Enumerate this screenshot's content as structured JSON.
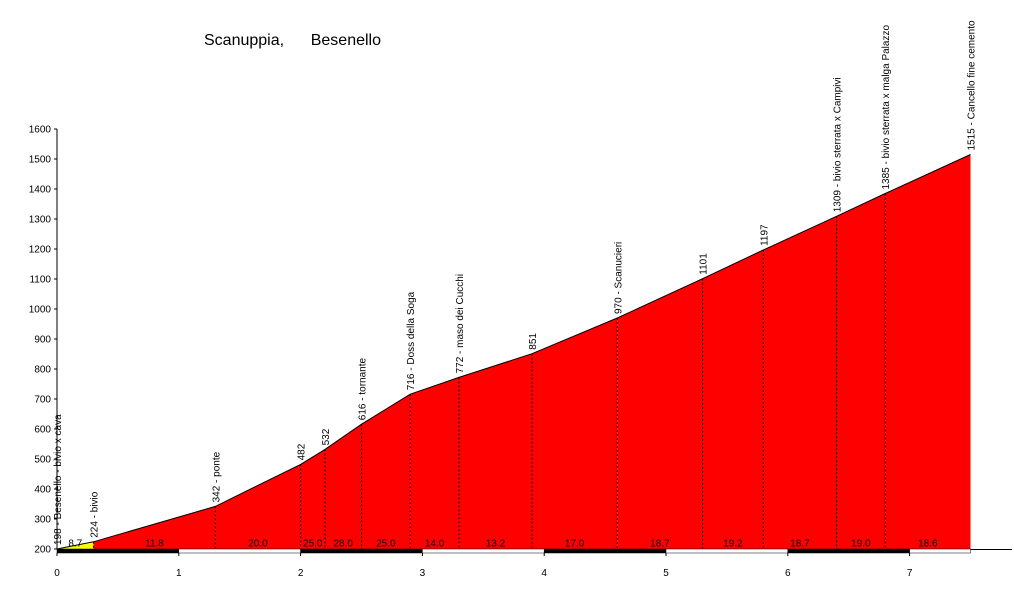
{
  "chart_data": {
    "type": "area",
    "title": "Scanuppia,      Besenello",
    "xlabel": "",
    "ylabel": "",
    "xlim": [
      0,
      7.5
    ],
    "ylim": [
      200,
      1600
    ],
    "xticks": [
      "0",
      "1",
      "2",
      "3",
      "4",
      "5",
      "6",
      "7"
    ],
    "yticks": [
      "200",
      "300",
      "400",
      "500",
      "600",
      "700",
      "800",
      "900",
      "1000",
      "1100",
      "1200",
      "1300",
      "1400",
      "1500",
      "1600"
    ],
    "profile": [
      {
        "x": 0.0,
        "y": 198,
        "label": "198 - Besenello - bivio x cava"
      },
      {
        "x": 0.3,
        "y": 224,
        "label": "224 - bivio"
      },
      {
        "x": 1.3,
        "y": 342,
        "label": "342 - ponte"
      },
      {
        "x": 2.0,
        "y": 482,
        "label": "482"
      },
      {
        "x": 2.2,
        "y": 532,
        "label": "532"
      },
      {
        "x": 2.5,
        "y": 616,
        "label": "616 - tornante"
      },
      {
        "x": 2.9,
        "y": 716,
        "label": "716 - Doss della Soga"
      },
      {
        "x": 3.3,
        "y": 772,
        "label": "772 - maso dei Cucchi"
      },
      {
        "x": 3.9,
        "y": 851,
        "label": "851"
      },
      {
        "x": 4.6,
        "y": 970,
        "label": "970 - Scanucieri"
      },
      {
        "x": 5.3,
        "y": 1101,
        "label": "1101"
      },
      {
        "x": 5.8,
        "y": 1197,
        "label": "1197"
      },
      {
        "x": 6.4,
        "y": 1309,
        "label": "1309 - bivio sterrata x Campivi"
      },
      {
        "x": 6.8,
        "y": 1385,
        "label": "1385 - bivio sterrata x malga Palazzo"
      },
      {
        "x": 7.5,
        "y": 1515,
        "label": "1515 - Cancello fine cemento"
      }
    ],
    "gradients": [
      "8.7",
      "11.8",
      "20.0",
      "25.0",
      "28.0",
      "25.0",
      "14.0",
      "13.2",
      "17.0",
      "18.7",
      "19.2",
      "18.7",
      "19.0",
      "18.6"
    ],
    "colors": {
      "fill": "#ff0000",
      "first_segment": "#ffff00",
      "line": "#000000"
    }
  }
}
